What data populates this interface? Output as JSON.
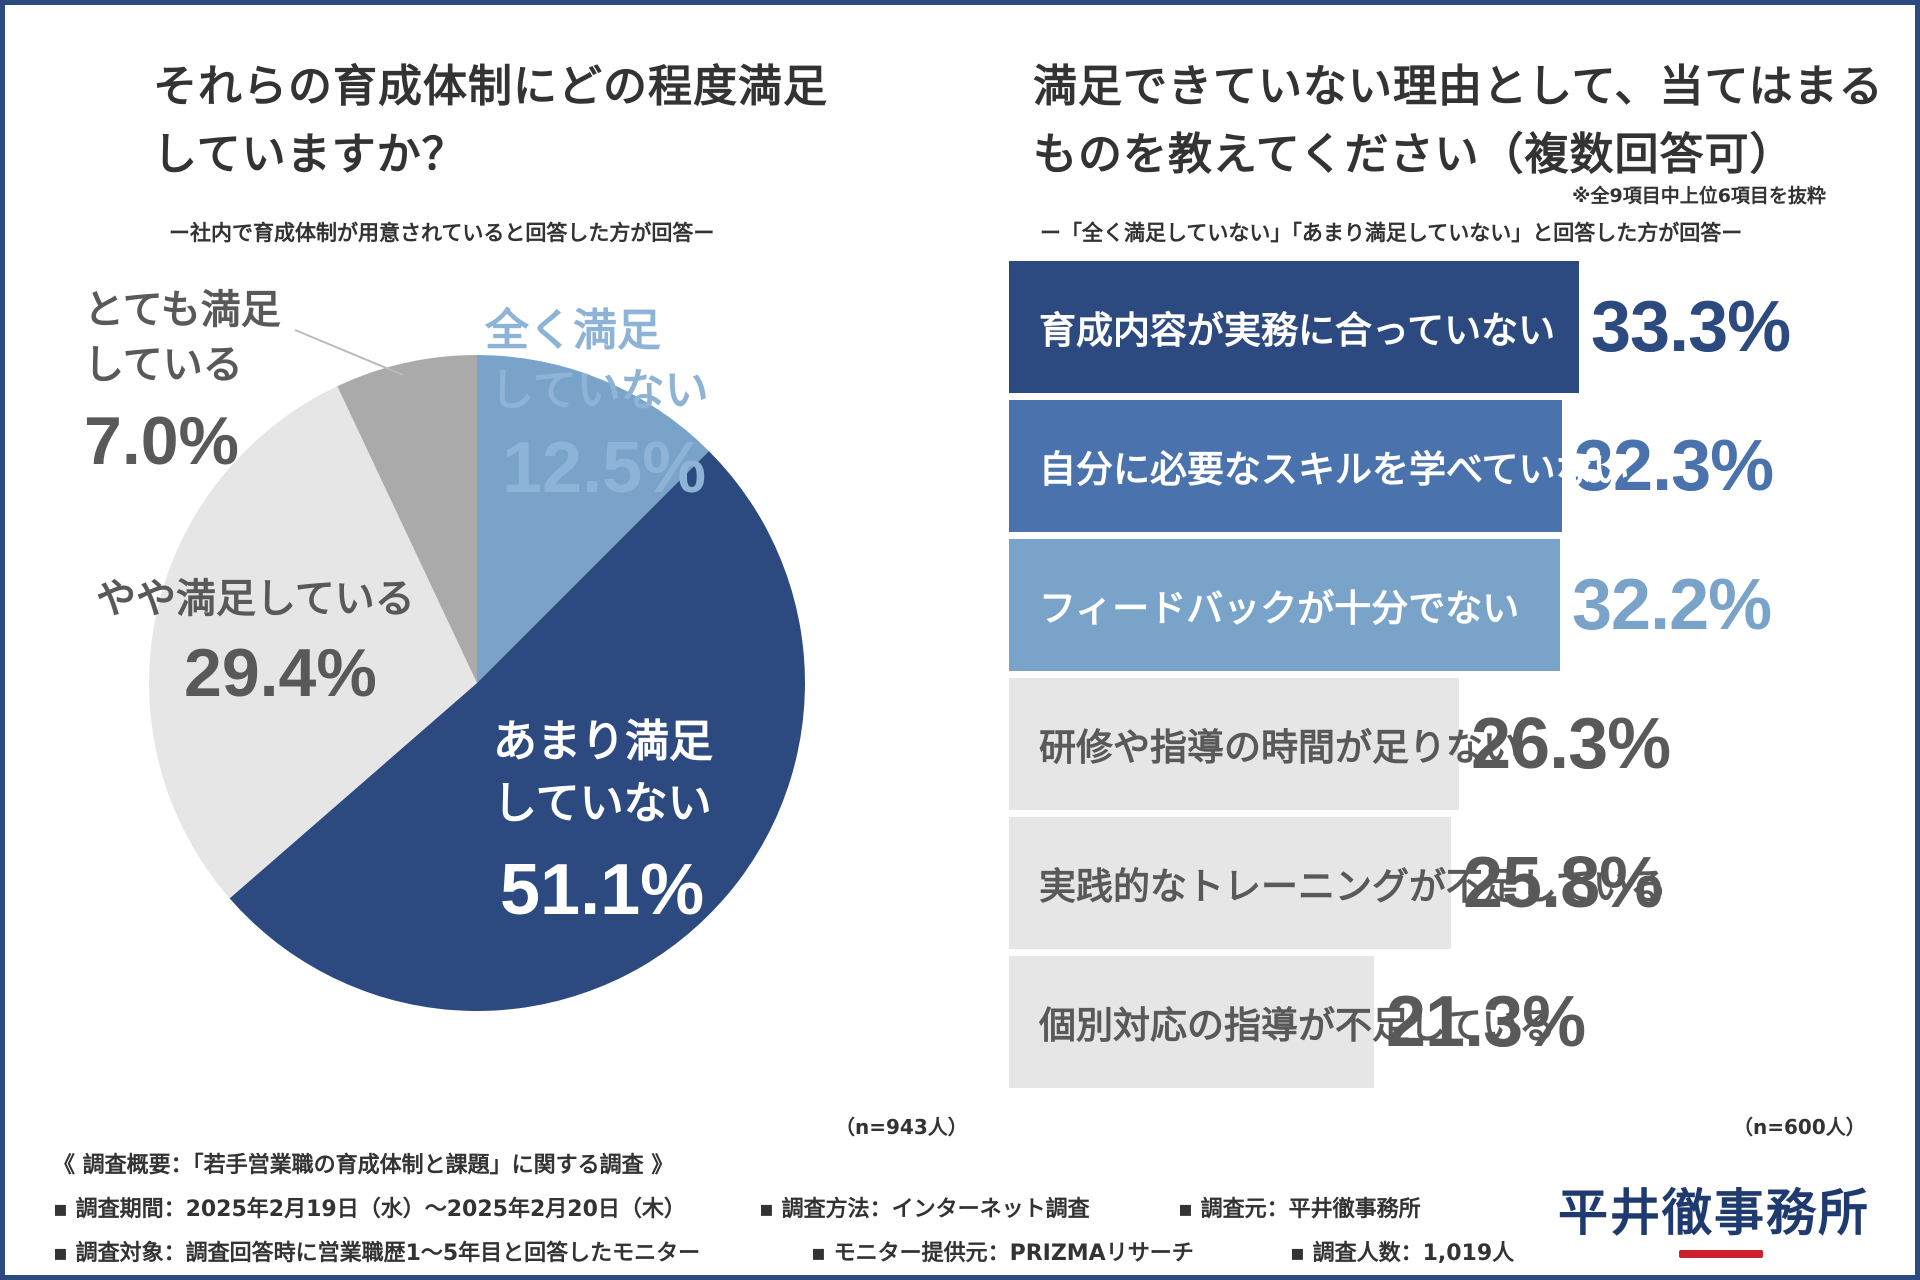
{
  "colors": {
    "navy": "#2d4a80",
    "blue": "#4a72ad",
    "light_blue": "#7aa3c9",
    "dark_gray": "#aaaaaa",
    "light_gray": "#e6e6e6",
    "text_gray": "#595959",
    "logo_red": "#cc1f2f"
  },
  "left_panel": {
    "title_line1": "それらの育成体制にどの程度満足",
    "title_line2": "していますか？",
    "subtitle": "ー社内で育成体制が用意されていると回答した方が回答ー",
    "n_label": "（n=943人）"
  },
  "right_panel": {
    "title_line1": "満足できていない理由として、当てはまる",
    "title_line2": "ものを教えてください（複数回答可）",
    "note": "※全9項目中上位6項目を抜粋",
    "subtitle": "ー「全く満足していない」「あまり満足していない」と回答した方が回答ー",
    "n_label": "（n=600人）"
  },
  "chart_data": [
    {
      "type": "pie",
      "title": "それらの育成体制にどの程度満足していますか？",
      "slices": [
        {
          "label_line1": "全く満足",
          "label_line2": "していない",
          "value": 12.5,
          "display": "12.5%",
          "color": "#7aa3c9",
          "text_color": "#8db3d6"
        },
        {
          "label_line1": "あまり満足",
          "label_line2": "していない",
          "value": 51.1,
          "display": "51.1%",
          "color": "#2d4a80",
          "text_color": "#ffffff"
        },
        {
          "label_line1": "やや満足している",
          "label_line2": "",
          "value": 29.4,
          "display": "29.4%",
          "color": "#e6e6e6",
          "text_color": "#595959"
        },
        {
          "label_line1": "とても満足",
          "label_line2": "している",
          "value": 7.0,
          "display": "7.0%",
          "color": "#aaaaaa",
          "text_color": "#595959"
        }
      ],
      "n": "n=943人"
    },
    {
      "type": "bar",
      "orientation": "horizontal",
      "title": "満足できていない理由として、当てはまるものを教えてください（複数回答可）",
      "categories": [
        "育成内容が実務に合っていない",
        "自分に必要なスキルを学べていない",
        "フィードバックが十分でない",
        "研修や指導の時間が足りない",
        "実践的なトレーニングが不足している",
        "個別対応の指導が不足している"
      ],
      "values": [
        33.3,
        32.3,
        32.2,
        26.3,
        25.8,
        21.3
      ],
      "display": [
        "33.3%",
        "32.3%",
        "32.2%",
        "26.3%",
        "25.8%",
        "21.3%"
      ],
      "bar_colors": [
        "#2d4a80",
        "#4a72ad",
        "#7aa3c9",
        "#e6e6e6",
        "#e6e6e6",
        "#e6e6e6"
      ],
      "label_colors": [
        "#ffffff",
        "#ffffff",
        "#ffffff",
        "#595959",
        "#595959",
        "#595959"
      ],
      "value_colors": [
        "#2d4a80",
        "#4a72ad",
        "#7aa3c9",
        "#595959",
        "#595959",
        "#595959"
      ],
      "xlim": [
        0,
        33.3
      ],
      "n": "n=600人"
    }
  ],
  "footer": {
    "heading": "《 調査概要：「若手営業職の育成体制と課題」に関する調査 》",
    "line1_a": "▪ 調査期間：2025年2月19日（水）～2025年2月20日（木）",
    "line1_b": "▪ 調査方法：インターネット調査",
    "line1_c": "▪ 調査元：平井徹事務所",
    "line2_a": "▪ 調査対象：調査回答時に営業職歴1～5年目と回答したモニター",
    "line2_b": "▪ モニター提供元：PRIZMAリサーチ",
    "line2_c": "▪ 調査人数：1,019人"
  },
  "logo": {
    "text": "平井徹事務所"
  }
}
